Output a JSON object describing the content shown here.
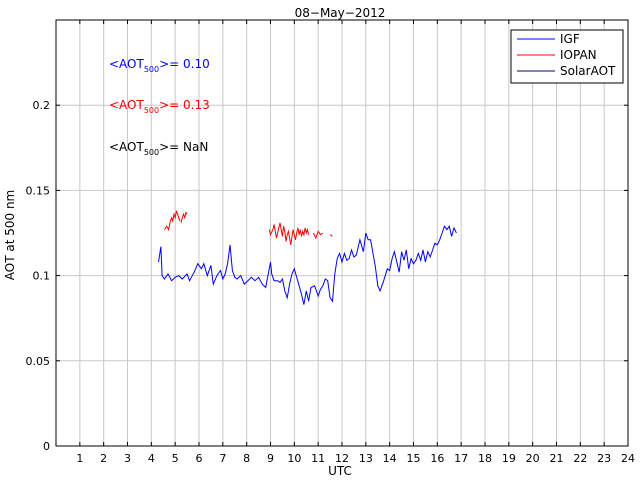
{
  "chart_data": {
    "type": "line",
    "title": "08−May−2012",
    "xlabel": "UTC",
    "ylabel": "AOT at 500 nm",
    "xlim": [
      0,
      24
    ],
    "ylim": [
      0,
      0.25
    ],
    "grid": true,
    "x_ticks": [
      "1",
      "2",
      "3",
      "4",
      "5",
      "6",
      "7",
      "8",
      "9",
      "10",
      "11",
      "12",
      "13",
      "14",
      "15",
      "16",
      "17",
      "18",
      "19",
      "20",
      "21",
      "22",
      "23",
      "24"
    ],
    "y_ticks": [
      "0",
      "0.05",
      "0.1",
      "0.15",
      "0.2"
    ],
    "legend": {
      "placement": "top-right"
    },
    "series": [
      {
        "name": "IGF",
        "color": "#0000ff",
        "points": [
          [
            4.3,
            0.108
          ],
          [
            4.4,
            0.117
          ],
          [
            4.45,
            0.1
          ],
          [
            4.55,
            0.098
          ],
          [
            4.7,
            0.101
          ],
          [
            4.85,
            0.097
          ],
          [
            5.0,
            0.099
          ],
          [
            5.15,
            0.1
          ],
          [
            5.3,
            0.098
          ],
          [
            5.5,
            0.101
          ],
          [
            5.6,
            0.097
          ],
          [
            5.8,
            0.102
          ],
          [
            5.95,
            0.107
          ],
          [
            6.1,
            0.104
          ],
          [
            6.2,
            0.107
          ],
          [
            6.35,
            0.1
          ],
          [
            6.5,
            0.106
          ],
          [
            6.6,
            0.095
          ],
          [
            6.75,
            0.1
          ],
          [
            6.9,
            0.103
          ],
          [
            7.0,
            0.098
          ],
          [
            7.1,
            0.101
          ],
          [
            7.2,
            0.107
          ],
          [
            7.3,
            0.118
          ],
          [
            7.4,
            0.103
          ],
          [
            7.5,
            0.099
          ],
          [
            7.6,
            0.098
          ],
          [
            7.75,
            0.1
          ],
          [
            7.9,
            0.095
          ],
          [
            8.05,
            0.097
          ],
          [
            8.2,
            0.099
          ],
          [
            8.35,
            0.097
          ],
          [
            8.5,
            0.099
          ],
          [
            8.65,
            0.095
          ],
          [
            8.8,
            0.093
          ],
          [
            9.0,
            0.108
          ],
          [
            9.05,
            0.101
          ],
          [
            9.15,
            0.097
          ],
          [
            9.3,
            0.097
          ],
          [
            9.4,
            0.096
          ],
          [
            9.5,
            0.098
          ],
          [
            9.6,
            0.091
          ],
          [
            9.7,
            0.087
          ],
          [
            9.8,
            0.095
          ],
          [
            9.9,
            0.101
          ],
          [
            10.0,
            0.104
          ],
          [
            10.1,
            0.099
          ],
          [
            10.2,
            0.094
          ],
          [
            10.3,
            0.089
          ],
          [
            10.4,
            0.083
          ],
          [
            10.5,
            0.091
          ],
          [
            10.6,
            0.085
          ],
          [
            10.7,
            0.093
          ],
          [
            10.85,
            0.094
          ],
          [
            11.0,
            0.088
          ],
          [
            11.1,
            0.092
          ],
          [
            11.2,
            0.094
          ],
          [
            11.3,
            0.098
          ],
          [
            11.4,
            0.097
          ],
          [
            11.5,
            0.087
          ],
          [
            11.6,
            0.085
          ],
          [
            11.7,
            0.101
          ],
          [
            11.8,
            0.11
          ],
          [
            11.9,
            0.113
          ],
          [
            12.0,
            0.108
          ],
          [
            12.1,
            0.113
          ],
          [
            12.2,
            0.109
          ],
          [
            12.3,
            0.11
          ],
          [
            12.4,
            0.115
          ],
          [
            12.5,
            0.111
          ],
          [
            12.6,
            0.112
          ],
          [
            12.75,
            0.121
          ],
          [
            12.9,
            0.114
          ],
          [
            13.0,
            0.125
          ],
          [
            13.1,
            0.121
          ],
          [
            13.2,
            0.121
          ],
          [
            13.3,
            0.113
          ],
          [
            13.4,
            0.105
          ],
          [
            13.5,
            0.094
          ],
          [
            13.6,
            0.091
          ],
          [
            13.75,
            0.097
          ],
          [
            13.9,
            0.104
          ],
          [
            14.0,
            0.103
          ],
          [
            14.1,
            0.11
          ],
          [
            14.2,
            0.114
          ],
          [
            14.3,
            0.108
          ],
          [
            14.4,
            0.102
          ],
          [
            14.5,
            0.114
          ],
          [
            14.6,
            0.109
          ],
          [
            14.7,
            0.115
          ],
          [
            14.8,
            0.104
          ],
          [
            14.9,
            0.11
          ],
          [
            15.0,
            0.107
          ],
          [
            15.1,
            0.109
          ],
          [
            15.2,
            0.113
          ],
          [
            15.3,
            0.109
          ],
          [
            15.4,
            0.115
          ],
          [
            15.5,
            0.108
          ],
          [
            15.6,
            0.114
          ],
          [
            15.7,
            0.111
          ],
          [
            15.8,
            0.115
          ],
          [
            15.9,
            0.119
          ],
          [
            16.0,
            0.118
          ],
          [
            16.1,
            0.121
          ],
          [
            16.2,
            0.125
          ],
          [
            16.3,
            0.129
          ],
          [
            16.4,
            0.127
          ],
          [
            16.5,
            0.129
          ],
          [
            16.6,
            0.123
          ],
          [
            16.7,
            0.128
          ],
          [
            16.8,
            0.125
          ]
        ]
      },
      {
        "name": "IOPAN",
        "color": "#ff0000",
        "segments": [
          [
            [
              4.55,
              0.127
            ],
            [
              4.65,
              0.129
            ],
            [
              4.72,
              0.127
            ],
            [
              4.8,
              0.132
            ],
            [
              4.85,
              0.134
            ],
            [
              4.9,
              0.132
            ],
            [
              4.95,
              0.136
            ],
            [
              5.0,
              0.134
            ],
            [
              5.05,
              0.138
            ],
            [
              5.1,
              0.136
            ],
            [
              5.15,
              0.134
            ],
            [
              5.2,
              0.132
            ]
          ],
          [
            [
              5.25,
              0.131
            ],
            [
              5.3,
              0.134
            ],
            [
              5.35,
              0.136
            ],
            [
              5.4,
              0.134
            ],
            [
              5.45,
              0.137
            ],
            [
              5.5,
              0.136
            ]
          ],
          [
            [
              8.95,
              0.127
            ],
            [
              9.0,
              0.124
            ],
            [
              9.1,
              0.127
            ],
            [
              9.15,
              0.13
            ],
            [
              9.2,
              0.126
            ],
            [
              9.25,
              0.122
            ],
            [
              9.3,
              0.125
            ],
            [
              9.35,
              0.128
            ],
            [
              9.4,
              0.131
            ],
            [
              9.45,
              0.127
            ],
            [
              9.5,
              0.123
            ],
            [
              9.55,
              0.129
            ],
            [
              9.6,
              0.126
            ],
            [
              9.65,
              0.12
            ],
            [
              9.7,
              0.124
            ],
            [
              9.75,
              0.126
            ],
            [
              9.8,
              0.122
            ],
            [
              9.85,
              0.118
            ],
            [
              9.9,
              0.123
            ],
            [
              9.95,
              0.127
            ],
            [
              10.0,
              0.124
            ],
            [
              10.05,
              0.121
            ],
            [
              10.1,
              0.125
            ],
            [
              10.15,
              0.128
            ],
            [
              10.2,
              0.124
            ],
            [
              10.25,
              0.127
            ],
            [
              10.3,
              0.123
            ],
            [
              10.35,
              0.126
            ],
            [
              10.4,
              0.124
            ],
            [
              10.45,
              0.128
            ],
            [
              10.5,
              0.125
            ],
            [
              10.55,
              0.127
            ],
            [
              10.6,
              0.124
            ]
          ],
          [
            [
              10.8,
              0.125
            ],
            [
              10.9,
              0.122
            ],
            [
              11.0,
              0.126
            ],
            [
              11.1,
              0.124
            ],
            [
              11.2,
              0.125
            ]
          ],
          [
            [
              11.5,
              0.124
            ],
            [
              11.6,
              0.123
            ]
          ]
        ]
      },
      {
        "name": "SolarAOT",
        "color": "#000080",
        "points": []
      }
    ],
    "annotations": [
      {
        "prefix": "<AOT",
        "subscript": "500",
        "suffix": ">= 0.10",
        "color": "#0000ff"
      },
      {
        "prefix": "<AOT",
        "subscript": "500",
        "suffix": ">= 0.13",
        "color": "#ff0000"
      },
      {
        "prefix": "<AOT",
        "subscript": "500",
        "suffix": ">=  NaN",
        "color": "#000000"
      }
    ]
  }
}
